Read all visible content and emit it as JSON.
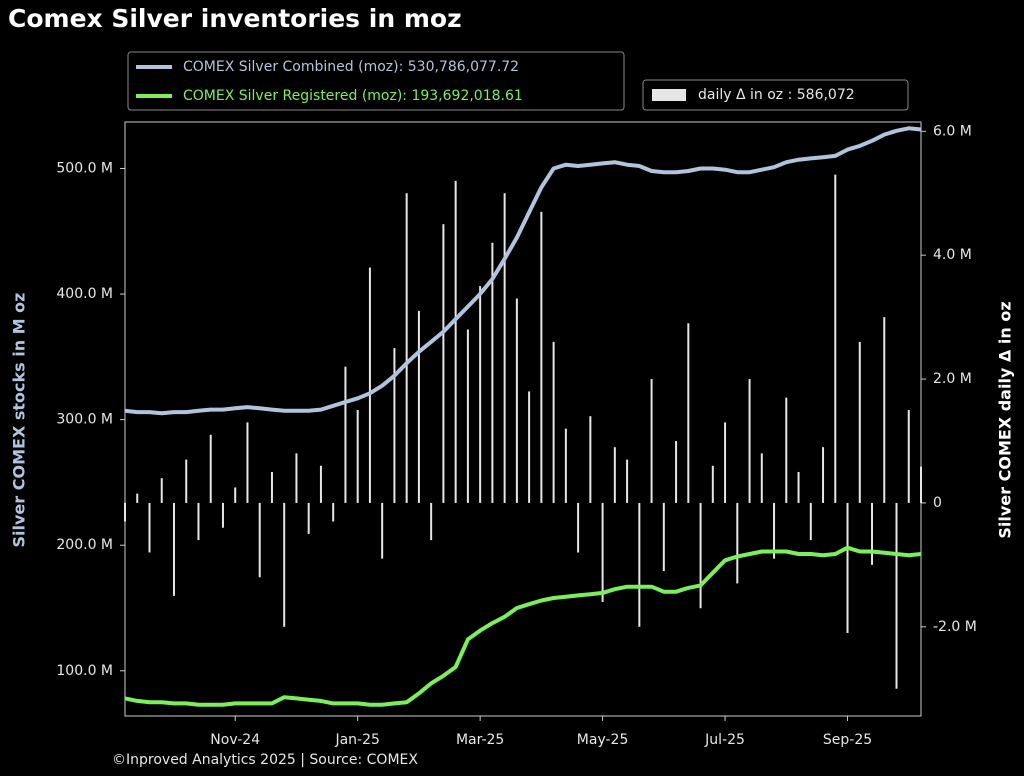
{
  "chart_data": {
    "type": "line",
    "title": "Comex Silver inventories in moz",
    "ylabel": "Silver COMEX stocks in M oz",
    "y2label": "Silver COMEX daily Δ in oz",
    "source": "©Inproved Analytics 2025 | Source: COMEX",
    "categories": [
      null,
      null,
      null,
      null,
      null,
      null,
      null,
      null,
      null,
      "Nov-24",
      null,
      null,
      null,
      null,
      null,
      null,
      null,
      null,
      null,
      "Jan-25",
      null,
      null,
      null,
      null,
      null,
      null,
      null,
      null,
      null,
      "Mar-25",
      null,
      null,
      null,
      null,
      null,
      null,
      null,
      null,
      null,
      "May-25",
      null,
      null,
      null,
      null,
      null,
      null,
      null,
      null,
      null,
      "Jul-25",
      null,
      null,
      null,
      null,
      null,
      null,
      null,
      null,
      null,
      "Sep-25",
      null,
      null,
      null,
      null,
      null,
      null
    ],
    "ylim": [
      64,
      537
    ],
    "yticks": [
      {
        "value": 100,
        "label": "100.0 M"
      },
      {
        "value": 200,
        "label": "200.0 M"
      },
      {
        "value": 300,
        "label": "300.0 M"
      },
      {
        "value": 400,
        "label": "400.0 M"
      },
      {
        "value": 500,
        "label": "500.0 M"
      }
    ],
    "y2lim": [
      -3440000,
      6150000
    ],
    "y2ticks": [
      {
        "value": -2000000,
        "label": "-2.0 M"
      },
      0,
      {
        "value": 2000000,
        "label": "2.0 M"
      },
      {
        "value": 4000000,
        "label": "4.0 M"
      },
      {
        "value": 6000000,
        "label": "6.0 M"
      }
    ],
    "series": [
      {
        "name": "COMEX Silver Combined (moz): 530,786,077.72",
        "color": "#b0c4de",
        "type": "line",
        "values": [
          307,
          306,
          306,
          305,
          306,
          306,
          307,
          308,
          308,
          309,
          310,
          309,
          308,
          307,
          307,
          307,
          308,
          311,
          314,
          317,
          321,
          327,
          335,
          345,
          354,
          362,
          370,
          380,
          390,
          400,
          412,
          428,
          445,
          465,
          485,
          500,
          503,
          502,
          503,
          504,
          505,
          503,
          502,
          498,
          497,
          497,
          498,
          500,
          500,
          499,
          497,
          497,
          499,
          501,
          505,
          507,
          508,
          509,
          510,
          515,
          518,
          522,
          527,
          530,
          532,
          531
        ]
      },
      {
        "name": "COMEX Silver Registered (moz): 193,692,018.61",
        "color": "#7cf05a",
        "type": "line",
        "values": [
          78,
          76,
          75,
          75,
          74,
          74,
          73,
          73,
          73,
          74,
          74,
          74,
          74,
          79,
          78,
          77,
          76,
          74,
          74,
          74,
          73,
          73,
          74,
          75,
          82,
          90,
          96,
          103,
          125,
          132,
          138,
          143,
          150,
          153,
          156,
          158,
          159,
          160,
          161,
          162,
          165,
          167,
          167,
          167,
          163,
          163,
          166,
          168,
          178,
          188,
          191,
          193,
          195,
          195,
          195,
          193,
          193,
          192,
          193,
          198,
          195,
          195,
          194,
          193,
          192,
          193
        ]
      },
      {
        "name": "daily Δ in oz : 586,072",
        "color": "#e6e6e6",
        "type": "bar",
        "axis": "y2",
        "values": [
          -300000,
          150000,
          -800000,
          400000,
          -1500000,
          700000,
          -600000,
          1100000,
          -400000,
          250000,
          1300000,
          -1200000,
          500000,
          -2000000,
          800000,
          -500000,
          600000,
          -300000,
          2200000,
          1500000,
          3800000,
          -900000,
          2500000,
          5000000,
          3100000,
          -600000,
          4500000,
          5200000,
          2800000,
          3500000,
          4200000,
          5000000,
          3300000,
          1800000,
          4700000,
          2600000,
          1200000,
          -800000,
          1400000,
          -1600000,
          900000,
          700000,
          -2000000,
          2000000,
          -1100000,
          1000000,
          2900000,
          -1700000,
          600000,
          1300000,
          -1300000,
          2000000,
          800000,
          -900000,
          1700000,
          500000,
          -600000,
          900000,
          5300000,
          -2100000,
          2600000,
          -1000000,
          3000000,
          -3000000,
          1500000,
          586072
        ]
      }
    ]
  }
}
